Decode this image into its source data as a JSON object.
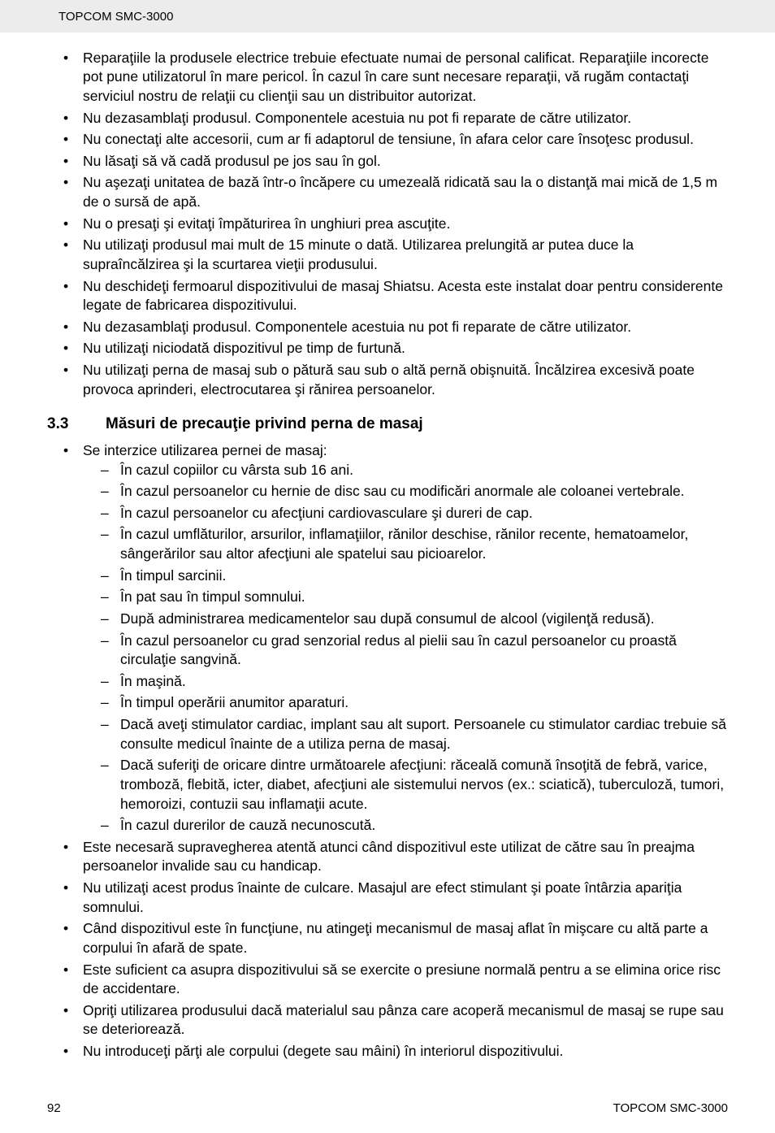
{
  "header": {
    "title": "TOPCOM SMC-3000"
  },
  "section1": {
    "bullets": [
      "Reparaţiile la produsele electrice trebuie efectuate numai de personal calificat. Reparaţiile incorecte pot pune utilizatorul în mare pericol. În cazul în care sunt necesare reparaţii, vă rugăm contactaţi serviciul nostru de relaţii cu clienţii sau un distribuitor autorizat.",
      "Nu dezasamblaţi produsul. Componentele acestuia nu pot fi reparate de către utilizator.",
      "Nu conectaţi alte accesorii, cum ar fi adaptorul de tensiune, în afara celor care însoţesc produsul.",
      "Nu lăsaţi să vă cadă produsul pe jos sau în gol.",
      "Nu aşezaţi unitatea de bază într-o încăpere cu umezeală ridicată sau la o distanţă mai mică de 1,5 m de o sursă de apă.",
      "Nu o presaţi şi evitaţi împăturirea în unghiuri prea ascuţite.",
      "Nu utilizaţi produsul mai mult de 15 minute o dată.  Utilizarea prelungită ar putea duce la supraîncălzirea şi la scurtarea vieţii produsului.",
      "Nu deschideţi fermoarul dispozitivului de masaj Shiatsu.  Acesta este instalat doar pentru considerente legate de fabricarea dispozitivului.",
      "Nu dezasamblaţi produsul. Componentele acestuia nu pot fi reparate de către utilizator.",
      "Nu utilizaţi niciodată dispozitivul pe timp de furtună.",
      "Nu utilizaţi perna de masaj sub o pătură sau sub o altă pernă obişnuită. Încălzirea excesivă poate provoca aprinderi, electrocutarea şi rănirea persoanelor."
    ]
  },
  "section2": {
    "number": "3.3",
    "title": "Măsuri de precauţie privind perna de masaj",
    "bullets": [
      {
        "text": "Se interzice utilizarea pernei de masaj:",
        "sub": [
          "În cazul copiilor cu vârsta sub 16 ani.",
          "În cazul persoanelor cu hernie de disc sau cu modificări anormale ale coloanei vertebrale.",
          "În cazul persoanelor cu afecţiuni cardiovasculare şi dureri de cap.",
          "În cazul umflăturilor, arsurilor, inflamaţiilor, rănilor deschise, rănilor recente, hematoamelor, sângerărilor sau altor afecţiuni ale spatelui sau picioarelor.",
          "În timpul sarcinii.",
          "În pat sau în timpul somnului.",
          "După administrarea medicamentelor sau după consumul de alcool (vigilenţă redusă).",
          "În cazul persoanelor cu grad senzorial redus al pielii sau în cazul persoanelor cu proastă circulaţie sangvină.",
          "În maşină.",
          "În timpul operării anumitor aparaturi.",
          "Dacă aveţi stimulator cardiac, implant sau alt suport. Persoanele cu stimulator cardiac trebuie să consulte medicul înainte de a utiliza perna de masaj.",
          "Dacă suferiţi de oricare dintre următoarele afecţiuni: răceală comună însoţită de febră, varice, tromboză, flebită, icter, diabet, afecţiuni ale sistemului nervos (ex.: sciatică), tuberculoză, tumori, hemoroizi, contuzii sau inflamaţii acute.",
          "În cazul durerilor de cauză necunoscută."
        ]
      },
      {
        "text": "Este necesară supravegherea atentă atunci când dispozitivul este utilizat de către sau în preajma persoanelor invalide sau cu handicap."
      },
      {
        "text": "Nu utilizaţi acest produs înainte de culcare. Masajul are efect stimulant şi poate întârzia apariţia somnului."
      },
      {
        "text": "Când dispozitivul este în funcţiune, nu atingeţi mecanismul de masaj aflat în mişcare cu altă parte a corpului în afară de spate."
      },
      {
        "text": "Este suficient ca asupra dispozitivului să se exercite o presiune normală pentru a se elimina orice risc de accidentare."
      },
      {
        "text": "Opriţi utilizarea produsului dacă materialul sau pânza care acoperă mecanismul de masaj se rupe sau se deteriorează."
      },
      {
        "text": "Nu introduceţi părţi ale corpului (degete sau mâini) în interiorul dispozitivului."
      }
    ]
  },
  "footer": {
    "pageNumber": "92",
    "model": "TOPCOM SMC-3000"
  }
}
